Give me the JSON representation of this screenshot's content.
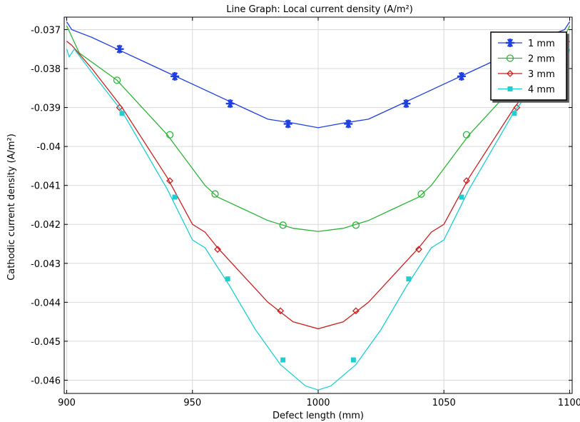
{
  "chart_data": {
    "type": "line",
    "title": "Line Graph: Local current density (A/m²)",
    "xlabel": "Defect length (mm)",
    "ylabel": "Cathodic current density (A/m²)",
    "xlim": [
      899,
      1101
    ],
    "ylim": [
      -0.04634,
      -0.03668
    ],
    "grid": true,
    "legend_position": "top-right",
    "x_ticks": [
      900,
      950,
      1000,
      1050,
      1100
    ],
    "x_tick_labels": [
      "900",
      "950",
      "1000",
      "1050",
      "1100"
    ],
    "y_ticks": [
      -0.037,
      -0.038,
      -0.039,
      -0.04,
      -0.041,
      -0.042,
      -0.043,
      -0.044,
      -0.045,
      -0.046
    ],
    "y_tick_labels": [
      "-0.037",
      "-0.038",
      "-0.039",
      "-0.04",
      "-0.041",
      "-0.042",
      "-0.043",
      "-0.044",
      "-0.045",
      "-0.046"
    ],
    "series": [
      {
        "name": "1 mm",
        "color": "#1f3fe0",
        "marker": "asterisk",
        "x": [
          900,
          902,
          910,
          920,
          930,
          940,
          950,
          960,
          970,
          980,
          990,
          1000,
          1010,
          1020,
          1030,
          1040,
          1050,
          1060,
          1070,
          1080,
          1090,
          1098,
          1100
        ],
        "y": [
          -0.0368,
          -0.037,
          -0.0372,
          -0.0375,
          -0.0378,
          -0.0381,
          -0.0384,
          -0.0387,
          -0.039,
          -0.0393,
          -0.0394,
          -0.03952,
          -0.0394,
          -0.0393,
          -0.039,
          -0.0387,
          -0.0384,
          -0.0381,
          -0.0378,
          -0.0375,
          -0.0372,
          -0.037,
          -0.0368
        ],
        "marker_x": [
          921,
          943,
          965,
          988,
          1012,
          1035,
          1057,
          1079
        ],
        "marker_y": [
          -0.0375,
          -0.0382,
          -0.0389,
          -0.03942,
          -0.03942,
          -0.0389,
          -0.0382,
          -0.0375
        ]
      },
      {
        "name": "2 mm",
        "color": "#2db33a",
        "marker": "circle",
        "x": [
          900,
          905,
          920,
          940,
          955,
          960,
          970,
          980,
          990,
          1000,
          1010,
          1020,
          1030,
          1040,
          1045,
          1060,
          1080,
          1095,
          1100
        ],
        "y": [
          -0.0369,
          -0.0376,
          -0.0383,
          -0.0397,
          -0.041,
          -0.0413,
          -0.0416,
          -0.0419,
          -0.0421,
          -0.04218,
          -0.0421,
          -0.0419,
          -0.0416,
          -0.0413,
          -0.041,
          -0.0397,
          -0.0383,
          -0.0376,
          -0.0369
        ],
        "marker_x": [
          920,
          941,
          959,
          986,
          1015,
          1041,
          1059,
          1080
        ],
        "marker_y": [
          -0.0383,
          -0.0397,
          -0.04122,
          -0.04202,
          -0.04202,
          -0.04122,
          -0.0397,
          -0.0383
        ]
      },
      {
        "name": "3 mm",
        "color": "#cc1f1f",
        "marker": "diamond",
        "x": [
          900,
          902,
          910,
          922,
          940,
          950,
          955,
          960,
          970,
          980,
          990,
          1000,
          1010,
          1020,
          1030,
          1040,
          1045,
          1050,
          1060,
          1078,
          1090,
          1098,
          1100
        ],
        "y": [
          -0.0373,
          -0.0374,
          -0.038,
          -0.039,
          -0.0408,
          -0.042,
          -0.0422,
          -0.0426,
          -0.0433,
          -0.044,
          -0.0445,
          -0.04468,
          -0.0445,
          -0.044,
          -0.0433,
          -0.0426,
          -0.0422,
          -0.042,
          -0.0408,
          -0.039,
          -0.038,
          -0.0374,
          -0.0373
        ],
        "marker_x": [
          921,
          941,
          960,
          985,
          1015,
          1040,
          1059,
          1079
        ],
        "marker_y": [
          -0.039,
          -0.04088,
          -0.04264,
          -0.04422,
          -0.04422,
          -0.04264,
          -0.04088,
          -0.039
        ]
      },
      {
        "name": "4 mm",
        "color": "#1ecfd2",
        "marker": "square",
        "x": [
          900,
          901,
          903,
          910,
          922,
          940,
          950,
          955,
          965,
          975,
          985,
          995,
          1000,
          1005,
          1015,
          1025,
          1035,
          1045,
          1050,
          1060,
          1078,
          1090,
          1097,
          1099,
          1100
        ],
        "y": [
          -0.0375,
          -0.0377,
          -0.0375,
          -0.0381,
          -0.0391,
          -0.0411,
          -0.0424,
          -0.0426,
          -0.0436,
          -0.0447,
          -0.0456,
          -0.04615,
          -0.04625,
          -0.04615,
          -0.0456,
          -0.0447,
          -0.0436,
          -0.0426,
          -0.0424,
          -0.0411,
          -0.0391,
          -0.0381,
          -0.0375,
          -0.0377,
          -0.0375
        ],
        "marker_x": [
          922,
          943,
          964,
          986,
          1014,
          1036,
          1057,
          1078
        ],
        "marker_y": [
          -0.03915,
          -0.0413,
          -0.0434,
          -0.04548,
          -0.04548,
          -0.0434,
          -0.0413,
          -0.03915
        ]
      }
    ]
  }
}
